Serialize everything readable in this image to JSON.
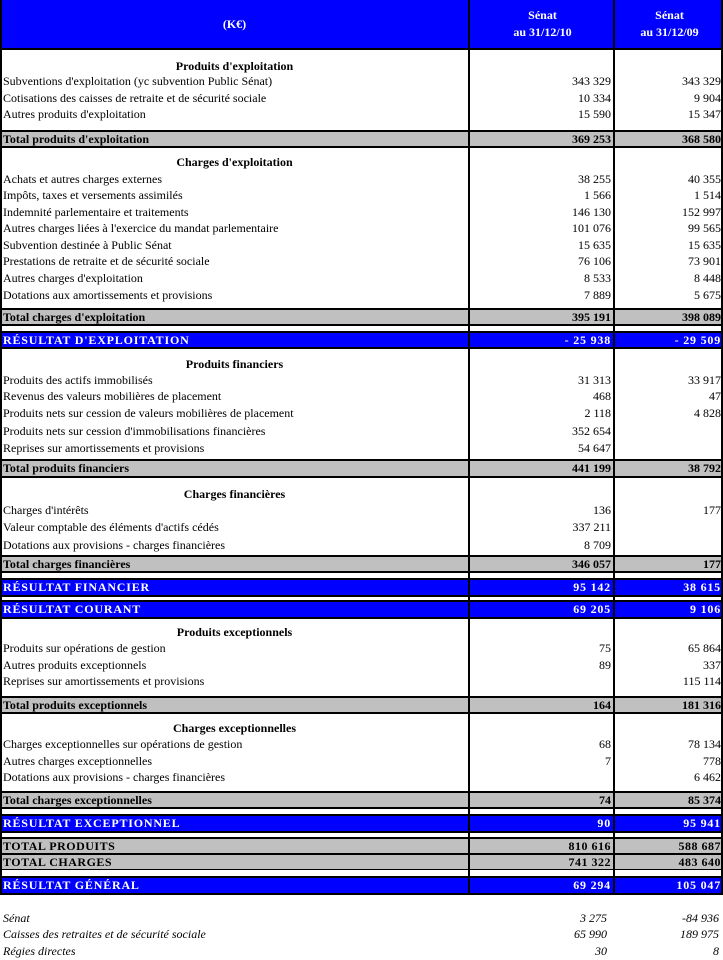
{
  "header": {
    "unit": "(K€)",
    "col1": [
      "Sénat",
      "au 31/12/10"
    ],
    "col2": [
      "Sénat",
      "au 31/12/09"
    ]
  },
  "colors": {
    "result_blue": "#0000ff",
    "total_gray": "#c0c0c0"
  },
  "rows": [
    {
      "kind": "section",
      "label": "Produits d'exploitation",
      "v1": "",
      "v2": ""
    },
    {
      "kind": "item",
      "label": "Subventions d'exploitation (yc subvention Public Sénat)",
      "v1": "343 329",
      "v2": "343 329"
    },
    {
      "kind": "item",
      "label": "Cotisations des caisses de retraite et de sécurité sociale",
      "v1": "10 334",
      "v2": "9 904"
    },
    {
      "kind": "item",
      "label": "Autres produits d'exploitation",
      "v1": "15 590",
      "v2": "15 347"
    },
    {
      "kind": "total",
      "label": "Total produits d'exploitation",
      "v1": "369 253",
      "v2": "368 580"
    },
    {
      "kind": "section",
      "label": "Charges d'exploitation",
      "v1": "",
      "v2": ""
    },
    {
      "kind": "item",
      "label": "Achats et autres charges externes",
      "v1": "38 255",
      "v2": "40 355"
    },
    {
      "kind": "item",
      "label": "Impôts, taxes et versements assimilés",
      "v1": "1 566",
      "v2": "1 514"
    },
    {
      "kind": "item",
      "label": "Indemnité parlementaire et traitements",
      "v1": "146 130",
      "v2": "152 997"
    },
    {
      "kind": "item",
      "label": "Autres charges liées à l'exercice du mandat parlementaire",
      "v1": "101 076",
      "v2": "99 565"
    },
    {
      "kind": "item",
      "label": "Subvention destinée à Public Sénat",
      "v1": "15 635",
      "v2": "15 635"
    },
    {
      "kind": "item",
      "label": "Prestations de retraite et de sécurité sociale",
      "v1": "76 106",
      "v2": "73 901"
    },
    {
      "kind": "item",
      "label": "Autres charges d'exploitation",
      "v1": "8 533",
      "v2": "8 448"
    },
    {
      "kind": "item",
      "label": "Dotations aux amortissements et provisions",
      "v1": "7 889",
      "v2": "5 675"
    },
    {
      "kind": "total",
      "label": "Total charges d'exploitation",
      "v1": "395 191",
      "v2": "398 089"
    },
    {
      "kind": "result",
      "label": "RÉSULTAT D'EXPLOITATION",
      "v1": "- 25 938",
      "v2": "- 29 509"
    },
    {
      "kind": "section",
      "label": "Produits financiers",
      "v1": "",
      "v2": ""
    },
    {
      "kind": "item",
      "label": "Produits des actifs immobilisés",
      "v1": "31 313",
      "v2": "33 917"
    },
    {
      "kind": "item",
      "label": "Revenus des valeurs mobilières de placement",
      "v1": "468",
      "v2": "47"
    },
    {
      "kind": "item",
      "label": "Produits nets sur cession de valeurs mobilières de placement",
      "v1": "2 118",
      "v2": "4 828"
    },
    {
      "kind": "item",
      "label": "Produits nets sur cession d'immobilisations financières",
      "v1": "352 654",
      "v2": ""
    },
    {
      "kind": "item",
      "label": "Reprises sur amortissements et provisions",
      "v1": "54 647",
      "v2": ""
    },
    {
      "kind": "total",
      "label": "Total produits financiers",
      "v1": "441 199",
      "v2": "38 792"
    },
    {
      "kind": "section",
      "label": "Charges financières",
      "v1": "",
      "v2": ""
    },
    {
      "kind": "item",
      "label": "Charges d'intérêts",
      "v1": "136",
      "v2": "177"
    },
    {
      "kind": "item",
      "label": "Valeur comptable des éléments d'actifs cédés",
      "v1": "337 211",
      "v2": ""
    },
    {
      "kind": "item",
      "label": "Dotations aux  provisions - charges financières",
      "v1": "8 709",
      "v2": ""
    },
    {
      "kind": "total",
      "label": "Total charges financières",
      "v1": "346 057",
      "v2": "177"
    },
    {
      "kind": "result",
      "label": "RÉSULTAT FINANCIER",
      "v1": "95 142",
      "v2": "38 615"
    },
    {
      "kind": "result",
      "label": "RÉSULTAT COURANT",
      "v1": "69 205",
      "v2": "9 106"
    },
    {
      "kind": "section",
      "label": "Produits exceptionnels",
      "v1": "",
      "v2": ""
    },
    {
      "kind": "item",
      "label": "Produits sur opérations de gestion",
      "v1": "75",
      "v2": "65 864"
    },
    {
      "kind": "item",
      "label": "Autres produits exceptionnels",
      "v1": "89",
      "v2": "337"
    },
    {
      "kind": "item",
      "label": "Reprises sur amortissements et provisions",
      "v1": "",
      "v2": "115 114"
    },
    {
      "kind": "total",
      "label": "Total produits exceptionnels",
      "v1": "164",
      "v2": "181 316"
    },
    {
      "kind": "section",
      "label": "Charges exceptionnelles",
      "v1": "",
      "v2": ""
    },
    {
      "kind": "item",
      "label": "Charges exceptionnelles sur opérations de gestion",
      "v1": "68",
      "v2": "78 134"
    },
    {
      "kind": "item",
      "label": "Autres charges exceptionnelles",
      "v1": "7",
      "v2": "778"
    },
    {
      "kind": "item",
      "label": "Dotations aux  provisions - charges financières",
      "v1": "",
      "v2": "6 462"
    },
    {
      "kind": "total",
      "label": "Total charges exceptionnelles",
      "v1": "74",
      "v2": "85 374"
    },
    {
      "kind": "result",
      "label": "RÉSULTAT EXCEPTIONNEL",
      "v1": "90",
      "v2": "95 941"
    },
    {
      "kind": "grand",
      "label": "TOTAL PRODUITS",
      "v1": "810 616",
      "v2": "588 687"
    },
    {
      "kind": "grand",
      "label": "TOTAL CHARGES",
      "v1": "741 322",
      "v2": "483 640"
    },
    {
      "kind": "result",
      "label": "RÉSULTAT GÉNÉRAL",
      "v1": "69 294",
      "v2": "105 047"
    },
    {
      "kind": "italic",
      "label": "Sénat",
      "v1": "3 275",
      "v2": "-84 936"
    },
    {
      "kind": "italic",
      "label": "Caisses des retraites et de sécurité sociale",
      "v1": "65 990",
      "v2": "189 975"
    },
    {
      "kind": "italic",
      "label": "Régies directes",
      "v1": "30",
      "v2": "8"
    }
  ]
}
